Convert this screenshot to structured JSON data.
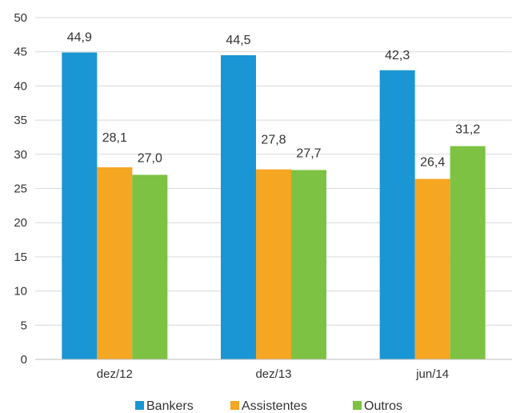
{
  "chart_data": {
    "type": "bar",
    "categories": [
      "dez/12",
      "dez/13",
      "jun/14"
    ],
    "series": [
      {
        "name": "Bankers",
        "values": [
          44.9,
          44.5,
          42.3
        ],
        "labels": [
          "44,9",
          "44,5",
          "42,3"
        ],
        "color": "#1a96d4"
      },
      {
        "name": "Assistentes",
        "values": [
          28.1,
          27.8,
          26.4
        ],
        "labels": [
          "28,1",
          "27,8",
          "26,4"
        ],
        "color": "#f5a623"
      },
      {
        "name": "Outros",
        "values": [
          27.0,
          27.7,
          31.2
        ],
        "labels": [
          "27,0",
          "27,7",
          "31,2"
        ],
        "color": "#7dc242"
      }
    ],
    "ylim": [
      0,
      50
    ],
    "yticks": [
      0,
      5,
      10,
      15,
      20,
      25,
      30,
      35,
      40,
      45,
      50
    ],
    "grid": true,
    "legend_position": "bottom",
    "title": "",
    "xlabel": "",
    "ylabel": ""
  }
}
